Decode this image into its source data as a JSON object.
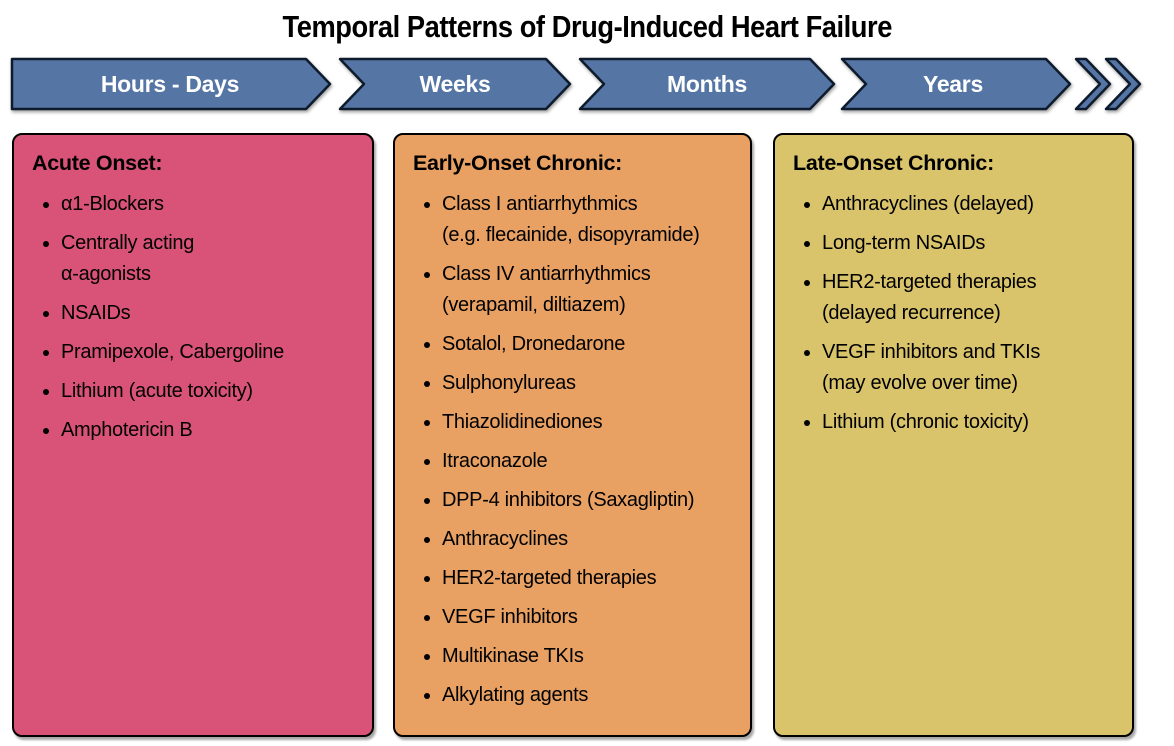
{
  "title": "Temporal Patterns of Drug-Induced Heart Failure",
  "colors": {
    "timeline_fill": "#5576A4",
    "timeline_stroke": "#0E1B2C",
    "timeline_label": "#FFFFFF",
    "box_border": "#000000",
    "text": "#000000"
  },
  "timeline": {
    "segments": [
      {
        "label": "Hours - Days"
      },
      {
        "label": "Weeks"
      },
      {
        "label": "Months"
      },
      {
        "label": "Years"
      }
    ]
  },
  "boxes": [
    {
      "header": "Acute Onset:",
      "color": "#D85377",
      "items": [
        [
          "α1-Blockers"
        ],
        [
          "Centrally acting",
          "α-agonists"
        ],
        [
          "NSAIDs"
        ],
        [
          "Pramipexole, Cabergoline"
        ],
        [
          "Lithium (acute toxicity)"
        ],
        [
          "Amphotericin B"
        ]
      ]
    },
    {
      "header": "Early-Onset Chronic:",
      "color": "#E8A163",
      "items": [
        [
          "Class I antiarrhythmics",
          "(e.g. flecainide, disopyramide)"
        ],
        [
          "Class IV antiarrhythmics",
          "(verapamil, diltiazem)"
        ],
        [
          "Sotalol, Dronedarone"
        ],
        [
          "Sulphonylureas"
        ],
        [
          "Thiazolidinediones"
        ],
        [
          "Itraconazole"
        ],
        [
          "DPP-4 inhibitors (Saxagliptin)"
        ],
        [
          "Anthracyclines"
        ],
        [
          "HER2-targeted therapies"
        ],
        [
          "VEGF inhibitors"
        ],
        [
          "Multikinase TKIs"
        ],
        [
          "Alkylating agents"
        ]
      ]
    },
    {
      "header": "Late-Onset Chronic:",
      "color": "#D9C46C",
      "items": [
        [
          "Anthracyclines (delayed)"
        ],
        [
          "Long-term NSAIDs"
        ],
        [
          "HER2-targeted therapies",
          "(delayed recurrence)"
        ],
        [
          "VEGF inhibitors and TKIs",
          "(may evolve over time)"
        ],
        [
          "Lithium (chronic toxicity)"
        ]
      ]
    }
  ]
}
